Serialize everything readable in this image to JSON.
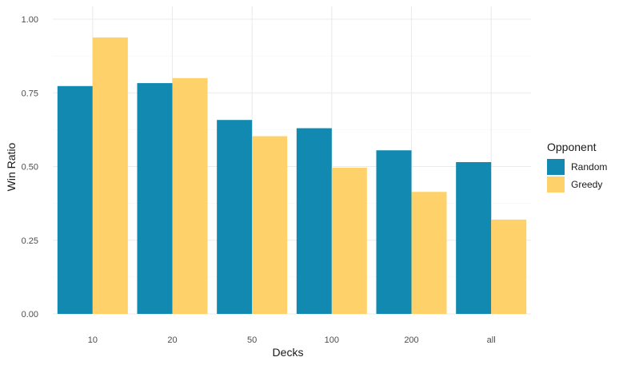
{
  "chart_data": {
    "type": "bar",
    "categories": [
      "10",
      "20",
      "50",
      "100",
      "200",
      "all"
    ],
    "series": [
      {
        "name": "Random",
        "color": "#1189B0",
        "values": [
          0.773,
          0.783,
          0.658,
          0.63,
          0.555,
          0.515
        ]
      },
      {
        "name": "Greedy",
        "color": "#FED16A",
        "values": [
          0.938,
          0.8,
          0.603,
          0.496,
          0.414,
          0.32
        ]
      }
    ],
    "xlabel": "Decks",
    "ylabel": "Win Ratio",
    "ylim": [
      0,
      1.0
    ],
    "yticks": [
      "0.00",
      "0.25",
      "0.50",
      "0.75",
      "1.00"
    ],
    "ytick_values": [
      0,
      0.25,
      0.5,
      0.75,
      1.0
    ],
    "grid": true,
    "legend": {
      "title": "Opponent",
      "position": "right"
    }
  }
}
